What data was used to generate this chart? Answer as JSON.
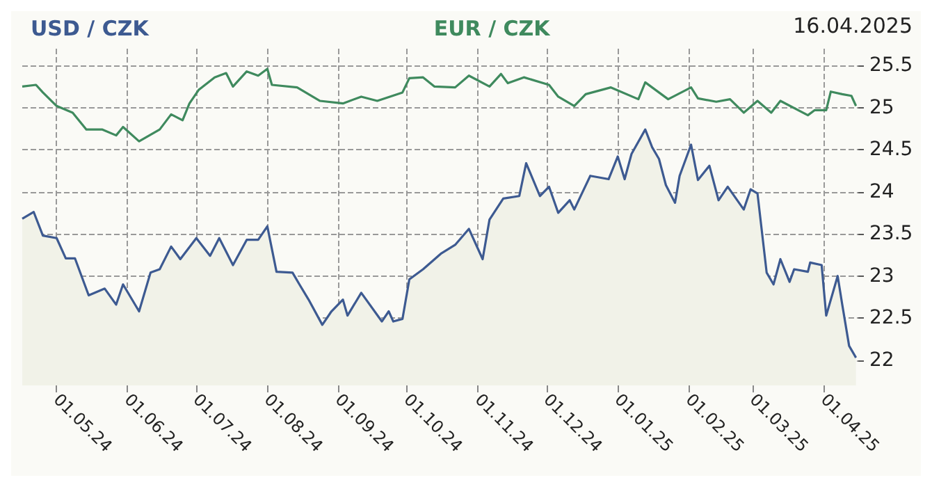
{
  "chart_data": {
    "type": "line",
    "annotations": [
      "16.04.2025"
    ],
    "legend": "top",
    "grid": true,
    "line_style": "solid",
    "marker": "none",
    "xlim": [
      "2024-04-16",
      "2025-04-16"
    ],
    "xticks": [
      {
        "value": "2024-05-01",
        "label": "01.05.24"
      },
      {
        "value": "2024-06-01",
        "label": "01.06.24"
      },
      {
        "value": "2024-07-01",
        "label": "01.07.24"
      },
      {
        "value": "2024-08-01",
        "label": "01.08.24"
      },
      {
        "value": "2024-09-01",
        "label": "01.09.24"
      },
      {
        "value": "2024-10-01",
        "label": "01.10.24"
      },
      {
        "value": "2024-11-01",
        "label": "01.11.24"
      },
      {
        "value": "2024-12-01",
        "label": "01.12.24"
      },
      {
        "value": "2025-01-01",
        "label": "01.01.25"
      },
      {
        "value": "2025-02-01",
        "label": "01.02.25"
      },
      {
        "value": "2025-03-01",
        "label": "01.03.25"
      },
      {
        "value": "2025-04-01",
        "label": "01.04.25"
      }
    ],
    "ylim": [
      21.7,
      25.7
    ],
    "yticks": [
      22,
      22.5,
      23,
      23.5,
      24,
      24.5,
      25,
      25.5
    ],
    "series": [
      {
        "name": "USD / CZK",
        "type": "area",
        "color": "#3d5a91",
        "x": [
          "2024-04-16",
          "2024-04-21",
          "2024-04-25",
          "2024-05-01",
          "2024-05-05",
          "2024-05-09",
          "2024-05-15",
          "2024-05-22",
          "2024-05-27",
          "2024-05-30",
          "2024-06-06",
          "2024-06-11",
          "2024-06-15",
          "2024-06-20",
          "2024-06-24",
          "2024-07-01",
          "2024-07-07",
          "2024-07-11",
          "2024-07-17",
          "2024-07-23",
          "2024-07-28",
          "2024-08-01",
          "2024-08-05",
          "2024-08-12",
          "2024-08-15",
          "2024-08-19",
          "2024-08-25",
          "2024-08-29",
          "2024-09-03",
          "2024-09-05",
          "2024-09-11",
          "2024-09-20",
          "2024-09-23",
          "2024-09-25",
          "2024-09-29",
          "2024-10-02",
          "2024-10-08",
          "2024-10-16",
          "2024-10-22",
          "2024-10-28",
          "2024-11-03",
          "2024-11-06",
          "2024-11-12",
          "2024-11-19",
          "2024-11-22",
          "2024-11-28",
          "2024-12-02",
          "2024-12-06",
          "2024-12-11",
          "2024-12-13",
          "2024-12-20",
          "2024-12-28",
          "2025-01-01",
          "2025-01-04",
          "2025-01-07",
          "2025-01-13",
          "2025-01-16",
          "2025-01-19",
          "2025-01-22",
          "2025-01-26",
          "2025-01-28",
          "2025-02-02",
          "2025-02-05",
          "2025-02-10",
          "2025-02-14",
          "2025-02-18",
          "2025-02-25",
          "2025-02-28",
          "2025-03-03",
          "2025-03-07",
          "2025-03-10",
          "2025-03-13",
          "2025-03-17",
          "2025-03-19",
          "2025-03-25",
          "2025-03-26",
          "2025-03-31",
          "2025-04-02",
          "2025-04-07",
          "2025-04-09",
          "2025-04-12",
          "2025-04-15"
        ],
        "values": [
          23.68,
          23.76,
          23.48,
          23.45,
          23.21,
          23.21,
          22.77,
          22.85,
          22.66,
          22.9,
          22.58,
          23.04,
          23.08,
          23.35,
          23.2,
          23.45,
          23.24,
          23.45,
          23.13,
          23.43,
          23.43,
          23.59,
          23.05,
          23.04,
          22.9,
          22.72,
          22.42,
          22.58,
          22.72,
          22.53,
          22.8,
          22.46,
          22.58,
          22.46,
          22.49,
          22.96,
          23.08,
          23.27,
          23.37,
          23.56,
          23.2,
          23.67,
          23.92,
          23.95,
          24.34,
          23.95,
          24.06,
          23.75,
          23.9,
          23.79,
          24.19,
          24.15,
          24.42,
          24.15,
          24.45,
          24.74,
          24.53,
          24.39,
          24.08,
          23.87,
          24.19,
          24.56,
          24.14,
          24.31,
          23.9,
          24.06,
          23.79,
          24.03,
          23.98,
          23.04,
          22.9,
          23.2,
          22.93,
          23.08,
          23.05,
          23.16,
          23.13,
          22.53,
          23.0,
          22.66,
          22.17,
          22.03
        ]
      },
      {
        "name": "EUR / CZK",
        "color": "#3f8a5e",
        "x": [
          "2024-04-16",
          "2024-04-22",
          "2024-04-25",
          "2024-05-01",
          "2024-05-08",
          "2024-05-14",
          "2024-05-21",
          "2024-05-27",
          "2024-05-30",
          "2024-06-06",
          "2024-06-15",
          "2024-06-20",
          "2024-06-25",
          "2024-06-28",
          "2024-07-02",
          "2024-07-09",
          "2024-07-14",
          "2024-07-17",
          "2024-07-23",
          "2024-07-28",
          "2024-08-01",
          "2024-08-03",
          "2024-08-14",
          "2024-08-24",
          "2024-09-03",
          "2024-09-11",
          "2024-09-18",
          "2024-09-29",
          "2024-10-02",
          "2024-10-08",
          "2024-10-13",
          "2024-10-22",
          "2024-10-28",
          "2024-11-06",
          "2024-11-11",
          "2024-11-14",
          "2024-11-21",
          "2024-12-02",
          "2024-12-06",
          "2024-12-13",
          "2024-12-18",
          "2024-12-29",
          "2025-01-10",
          "2025-01-13",
          "2025-01-23",
          "2025-02-02",
          "2025-02-05",
          "2025-02-13",
          "2025-02-19",
          "2025-02-25",
          "2025-03-03",
          "2025-03-09",
          "2025-03-13",
          "2025-03-25",
          "2025-03-28",
          "2025-04-02",
          "2025-04-04",
          "2025-04-09",
          "2025-04-13",
          "2025-04-15"
        ],
        "values": [
          25.25,
          25.27,
          25.18,
          25.02,
          24.94,
          24.74,
          24.74,
          24.67,
          24.77,
          24.6,
          24.74,
          24.92,
          24.85,
          25.05,
          25.21,
          25.36,
          25.41,
          25.25,
          25.43,
          25.38,
          25.46,
          25.27,
          25.24,
          25.08,
          25.05,
          25.13,
          25.08,
          25.18,
          25.35,
          25.36,
          25.25,
          25.24,
          25.38,
          25.25,
          25.4,
          25.29,
          25.36,
          25.27,
          25.13,
          25.02,
          25.16,
          25.24,
          25.1,
          25.3,
          25.1,
          25.24,
          25.11,
          25.07,
          25.1,
          24.94,
          25.08,
          24.94,
          25.08,
          24.91,
          24.97,
          24.97,
          25.19,
          25.16,
          25.14,
          25.02
        ]
      }
    ]
  }
}
